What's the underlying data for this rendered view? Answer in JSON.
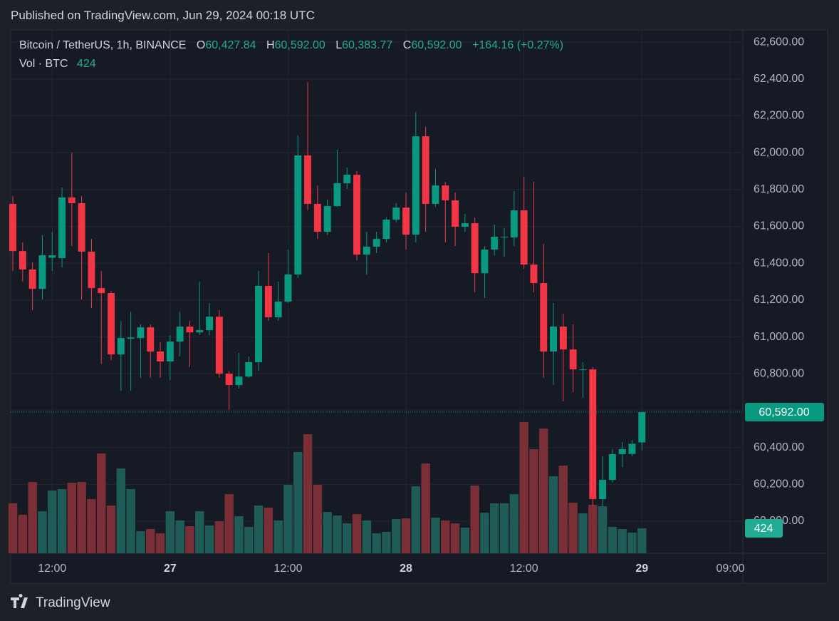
{
  "published": "Published on TradingView.com, Jun 29, 2024 00:18 UTC",
  "brand": "TradingView",
  "legend": {
    "symbol": "Bitcoin / TetherUS, 1h, BINANCE",
    "open_key": "O",
    "open": "60,427.84",
    "high_key": "H",
    "high": "60,592.00",
    "low_key": "L",
    "low": "60,383.77",
    "close_key": "C",
    "close": "60,592.00",
    "change": "+164.16 (+0.27%)",
    "volume_key": "Vol · BTC"
  },
  "chart_data": {
    "type": "candlestick",
    "up_color": "#089981",
    "down_color": "#f23645",
    "volume_up_color": "#1f5c57",
    "volume_down_color": "#7a2f36",
    "grid": true,
    "xlim": [
      -0.22,
      74.27
    ],
    "xticks": [
      {
        "value": 4,
        "label": "12:00"
      },
      {
        "value": 16,
        "label": "27"
      },
      {
        "value": 28,
        "label": "12:00"
      },
      {
        "value": 40,
        "label": "28"
      },
      {
        "value": 52,
        "label": "12:00"
      },
      {
        "value": 64,
        "label": "29"
      },
      {
        "value": 73,
        "label": "09:00"
      }
    ],
    "ylim": [
      59826,
      62666
    ],
    "yticks": [
      {
        "value": 60000,
        "label": "60,000.00"
      },
      {
        "value": 60200,
        "label": "60,200.00"
      },
      {
        "value": 60400,
        "label": "60,400.00"
      },
      {
        "value": 60600,
        "label": "60,600.00"
      },
      {
        "value": 60800,
        "label": "60,800.00"
      },
      {
        "value": 61000,
        "label": "61,000.00"
      },
      {
        "value": 61200,
        "label": "61,200.00"
      },
      {
        "value": 61400,
        "label": "61,400.00"
      },
      {
        "value": 61600,
        "label": "61,600.00"
      },
      {
        "value": 61800,
        "label": "61,800.00"
      },
      {
        "value": 62000,
        "label": "62,000.00"
      },
      {
        "value": 62200,
        "label": "62,200.00"
      },
      {
        "value": 62400,
        "label": "62,400.00"
      },
      {
        "value": 62600,
        "label": "62,600.00"
      }
    ],
    "y2lim": [
      0,
      8892
    ],
    "open": [
      61722,
      61466,
      61366,
      61261,
      61430,
      61428,
      61757,
      61726,
      61463,
      61265,
      61238,
      60905,
      60990,
      60994,
      61052,
      60921,
      60867,
      60975,
      61056,
      61025,
      61037,
      61110,
      60801,
      60739,
      60785,
      60863,
      61277,
      61107,
      61192,
      61339,
      61985,
      61722,
      61571,
      61710,
      61834,
      61880,
      61447,
      61490,
      61532,
      61637,
      61702,
      61555,
      62089,
      61722,
      61822,
      61741,
      61598,
      61617,
      61346,
      61474,
      61540,
      61540,
      61687,
      61393,
      61292,
      60921,
      61056,
      60932,
      60820,
      60824,
      60120,
      60224,
      60364,
      60365,
      60427.84
    ],
    "high": [
      61764,
      61513,
      61404,
      61552,
      61571,
      61811,
      62000,
      61764,
      61532,
      61358,
      61250,
      61087,
      61137,
      61068,
      61068,
      60971,
      61010,
      61137,
      61087,
      61300,
      61184,
      61145,
      60816,
      60913,
      60894,
      61358,
      61455,
      61300,
      61474,
      62093,
      62383,
      61822,
      61745,
      62016,
      61919,
      61900,
      61571,
      61571,
      61648,
      61726,
      61784,
      62221,
      62140,
      61911,
      61842,
      61784,
      61668,
      61648,
      61493,
      61610,
      61590,
      61791,
      61869,
      61842,
      61505,
      61184,
      61126,
      61068,
      60863,
      60836,
      60352,
      60391,
      60430,
      60441,
      60592
    ],
    "low": [
      61358,
      61300,
      61145,
      61203,
      61358,
      61377,
      61493,
      61203,
      61157,
      60855,
      60874,
      60708,
      60708,
      60778,
      60778,
      60778,
      60766,
      60894,
      60836,
      61010,
      61010,
      60778,
      60604,
      60720,
      60778,
      60816,
      61087,
      61087,
      61184,
      61319,
      61687,
      61532,
      61552,
      61706,
      61803,
      61416,
      61339,
      61455,
      61513,
      61621,
      61474,
      61513,
      61571,
      61706,
      61513,
      61493,
      61571,
      61242,
      61211,
      61443,
      61435,
      61493,
      61370,
      61242,
      60778,
      60739,
      60650,
      60700,
      60669,
      60081,
      60081,
      60210,
      60294,
      60352,
      60383.77
    ],
    "close": [
      61466,
      61366,
      61261,
      61443,
      61443,
      61757,
      61726,
      61463,
      61265,
      61238,
      60905,
      60994,
      60997,
      61052,
      60921,
      60867,
      60975,
      61056,
      61025,
      61037,
      61110,
      60801,
      60739,
      60785,
      60863,
      61277,
      61107,
      61192,
      61339,
      61985,
      61722,
      61571,
      61710,
      61834,
      61880,
      61447,
      61490,
      61532,
      61637,
      61702,
      61555,
      62089,
      61722,
      61822,
      61741,
      61598,
      61617,
      61346,
      61474,
      61544,
      61544,
      61687,
      61393,
      61292,
      60921,
      61056,
      60932,
      60824,
      60824,
      60120,
      60224,
      60364,
      60391,
      60420,
      60592
    ],
    "volume": [
      848,
      654,
      1211,
      714,
      1066,
      1090,
      1199,
      1211,
      920,
      1695,
      811,
      1441,
      1090,
      375,
      412,
      339,
      714,
      557,
      460,
      714,
      472,
      545,
      1005,
      630,
      448,
      811,
      775,
      557,
      1163,
      1720,
      2022,
      1163,
      702,
      642,
      509,
      666,
      557,
      339,
      363,
      581,
      593,
      1138,
      1526,
      606,
      557,
      509,
      436,
      1150,
      690,
      848,
      848,
      1005,
      2228,
      1768,
      2119,
      1308,
      1490,
      860,
      678,
      823,
      799,
      448,
      412,
      351,
      424
    ]
  }
}
